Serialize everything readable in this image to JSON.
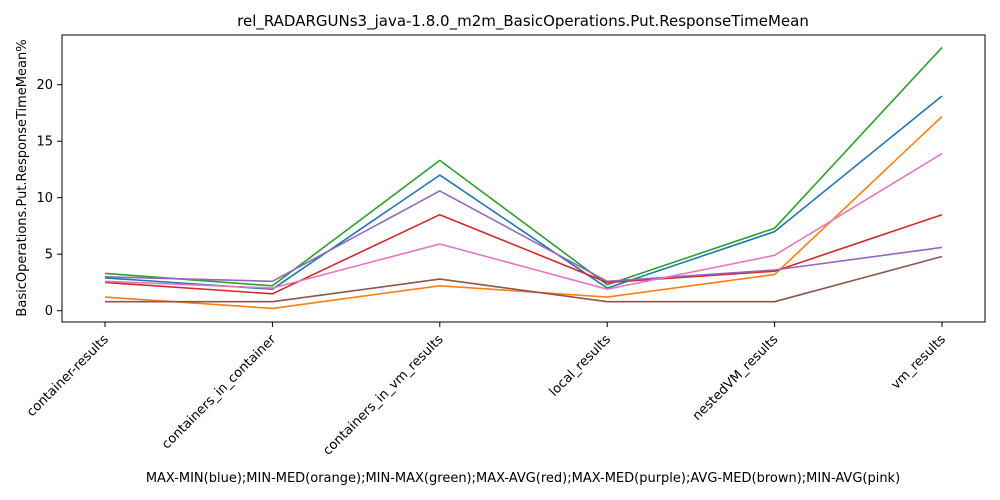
{
  "chart_data": {
    "type": "line",
    "title": "rel_RADARGUNs3_java-1.8.0_m2m_BasicOperations.Put.ResponseTimeMean",
    "xlabel": "MAX-MIN(blue);MIN-MED(orange);MIN-MAX(green);MAX-AVG(red);MAX-MED(purple);AVG-MED(brown);MIN-AVG(pink)",
    "ylabel": "BasicOperations.Put.ResponseTimeMean%",
    "categories": [
      "container-results",
      "containers_in_container",
      "containers_in_vm_results",
      "local_results",
      "nestedVM_results",
      "vm_results"
    ],
    "ylim": [
      -1,
      24.4
    ],
    "yticks": [
      0,
      5,
      10,
      15,
      20
    ],
    "grid": false,
    "legend": "none",
    "series": [
      {
        "color": "#1f77b4",
        "values": [
          2.9,
          1.9,
          12.0,
          2.0,
          7.0,
          19.0
        ]
      },
      {
        "color": "#ff7f0e",
        "values": [
          1.2,
          0.2,
          2.2,
          1.2,
          3.2,
          17.2
        ]
      },
      {
        "color": "#2ca02c",
        "values": [
          3.3,
          2.2,
          13.3,
          2.3,
          7.3,
          23.3
        ]
      },
      {
        "color": "#d62728",
        "values": [
          2.5,
          1.5,
          8.5,
          2.5,
          3.5,
          8.5
        ]
      },
      {
        "color": "#9467bd",
        "values": [
          3.0,
          2.6,
          10.6,
          2.6,
          3.6,
          5.6
        ]
      },
      {
        "color": "#8c564b",
        "values": [
          0.8,
          0.8,
          2.8,
          0.8,
          0.8,
          4.8
        ]
      },
      {
        "color": "#e377c2",
        "values": [
          2.6,
          2.0,
          5.9,
          1.9,
          4.9,
          13.9
        ]
      }
    ]
  }
}
